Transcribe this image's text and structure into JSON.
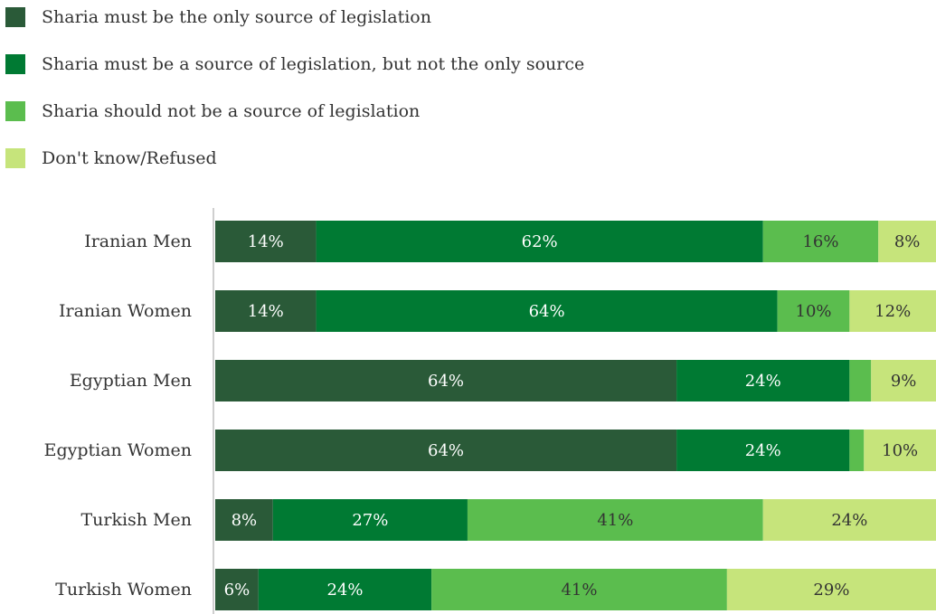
{
  "chart_data": {
    "type": "bar",
    "orientation": "horizontal",
    "stacked": true,
    "grid": false,
    "legend_position": "top-left",
    "title": "",
    "xlabel": "",
    "ylabel": "",
    "xlim": [
      0,
      100
    ],
    "categories": [
      "Iranian Men",
      "Iranian Women",
      "Egyptian Men",
      "Egyptian Women",
      "Turkish Men",
      "Turkish Women"
    ],
    "series": [
      {
        "name": "Sharia must be the only source of legislation",
        "color": "#2a5a38",
        "values": [
          14,
          14,
          64,
          64,
          8,
          6
        ],
        "labels": [
          "14%",
          "14%",
          "64%",
          "64%",
          "8%",
          "6%"
        ]
      },
      {
        "name": "Sharia must be a source of legislation, but not the only source",
        "color": "#007a33",
        "values": [
          62,
          64,
          24,
          24,
          27,
          24
        ],
        "labels": [
          "62%",
          "64%",
          "24%",
          "24%",
          "27%",
          "24%"
        ]
      },
      {
        "name": "Sharia should not be a source of legislation",
        "color": "#5bbd4e",
        "values": [
          16,
          10,
          3,
          2,
          41,
          41
        ],
        "labels": [
          "16%",
          "10%",
          "",
          "",
          "41%",
          "41%"
        ]
      },
      {
        "name": "Don't know/Refused",
        "color": "#c6e47b",
        "values": [
          8,
          12,
          9,
          10,
          24,
          29
        ],
        "labels": [
          "8%",
          "12%",
          "9%",
          "10%",
          "24%",
          "29%"
        ]
      }
    ]
  }
}
